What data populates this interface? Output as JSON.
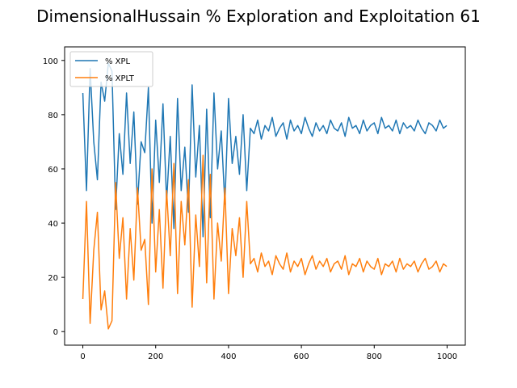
{
  "chart_data": {
    "type": "line",
    "title": "DimensionalHussain % Exploration and Exploitation 61",
    "xlabel": "",
    "ylabel": "",
    "xlim": [
      -50,
      1050
    ],
    "ylim": [
      -5,
      105
    ],
    "x_ticks": [
      0,
      200,
      400,
      600,
      800,
      1000
    ],
    "x_tick_labels": [
      "0",
      "200",
      "400",
      "600",
      "800",
      "1000"
    ],
    "y_ticks": [
      0,
      20,
      40,
      60,
      80,
      100
    ],
    "y_tick_labels": [
      "0",
      "20",
      "40",
      "60",
      "80",
      "100"
    ],
    "grid": false,
    "legend_position": "top-left",
    "x": [
      0,
      10,
      20,
      30,
      40,
      50,
      60,
      70,
      80,
      90,
      100,
      110,
      120,
      130,
      140,
      150,
      160,
      170,
      180,
      190,
      200,
      210,
      220,
      230,
      240,
      250,
      260,
      270,
      280,
      290,
      300,
      310,
      320,
      330,
      340,
      350,
      360,
      370,
      380,
      390,
      400,
      410,
      420,
      430,
      440,
      450,
      460,
      470,
      480,
      490,
      500,
      510,
      520,
      530,
      540,
      550,
      560,
      570,
      580,
      590,
      600,
      610,
      620,
      630,
      640,
      650,
      660,
      670,
      680,
      690,
      700,
      710,
      720,
      730,
      740,
      750,
      760,
      770,
      780,
      790,
      800,
      810,
      820,
      830,
      840,
      850,
      860,
      870,
      880,
      890,
      900,
      910,
      920,
      930,
      940,
      950,
      960,
      970,
      980,
      990,
      999
    ],
    "series": [
      {
        "name": "% XPL",
        "color": "#1f77b4",
        "values": [
          88,
          52,
          97,
          70,
          56,
          92,
          85,
          99,
          96,
          45,
          73,
          58,
          88,
          62,
          81,
          47,
          70,
          66,
          90,
          40,
          78,
          55,
          84,
          48,
          72,
          38,
          86,
          52,
          68,
          44,
          91,
          57,
          76,
          35,
          82,
          42,
          88,
          60,
          74,
          47,
          86,
          62,
          72,
          58,
          80,
          52,
          75,
          73,
          78,
          71,
          76,
          74,
          79,
          72,
          75,
          77,
          71,
          78,
          74,
          76,
          73,
          79,
          75,
          72,
          77,
          74,
          76,
          73,
          78,
          75,
          74,
          77,
          72,
          79,
          75,
          76,
          73,
          78,
          74,
          76,
          77,
          73,
          79,
          75,
          76,
          74,
          78,
          73,
          77,
          75,
          76,
          74,
          78,
          75,
          73,
          77,
          76,
          74,
          78,
          75,
          76
        ]
      },
      {
        "name": "% XPLT",
        "color": "#ff7f0e",
        "values": [
          12,
          48,
          3,
          30,
          44,
          8,
          15,
          1,
          4,
          55,
          27,
          42,
          12,
          38,
          19,
          53,
          30,
          34,
          10,
          60,
          22,
          45,
          16,
          52,
          28,
          62,
          14,
          48,
          32,
          56,
          9,
          43,
          24,
          65,
          18,
          58,
          12,
          40,
          26,
          53,
          14,
          38,
          28,
          42,
          20,
          48,
          25,
          27,
          22,
          29,
          24,
          26,
          21,
          28,
          25,
          23,
          29,
          22,
          26,
          24,
          27,
          21,
          25,
          28,
          23,
          26,
          24,
          27,
          22,
          25,
          26,
          23,
          28,
          21,
          25,
          24,
          27,
          22,
          26,
          24,
          23,
          27,
          21,
          25,
          24,
          26,
          22,
          27,
          23,
          25,
          24,
          26,
          22,
          25,
          27,
          23,
          24,
          26,
          22,
          25,
          24
        ]
      }
    ]
  }
}
